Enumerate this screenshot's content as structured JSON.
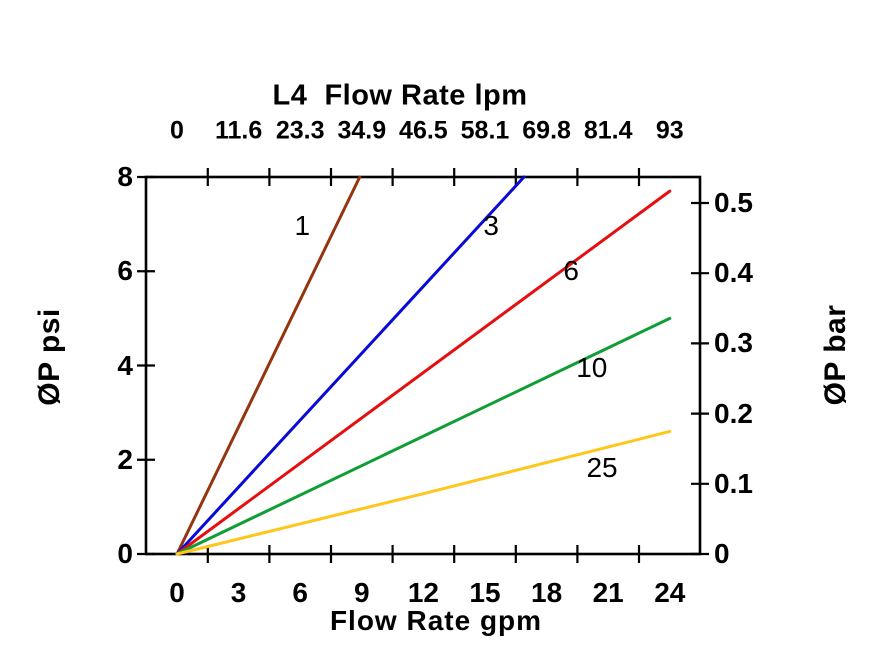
{
  "chart_data": {
    "type": "line",
    "title": "L4  Flow Rate lpm",
    "background": "#ffffff",
    "axis_color": "#000000",
    "grid": false,
    "top_axis": {
      "title": "L4  Flow Rate lpm",
      "unit": "lpm",
      "tick_labels": [
        "0",
        "11.6",
        "23.3",
        "34.9",
        "46.5",
        "58.1",
        "69.8",
        "81.4",
        "93"
      ],
      "label_positions_gpm": [
        0,
        3,
        6,
        9,
        12,
        15,
        18,
        21,
        24
      ],
      "tick_marks_gpm": [
        1.5,
        4.5,
        7.5,
        10.5,
        13.5,
        16.5,
        19.5,
        22.5
      ]
    },
    "bottom_axis": {
      "title": "Flow Rate gpm",
      "unit": "gpm",
      "tick_labels": [
        "0",
        "3",
        "6",
        "9",
        "12",
        "15",
        "18",
        "21",
        "24"
      ],
      "tick_values": [
        0,
        3,
        6,
        9,
        12,
        15,
        18,
        21,
        24
      ],
      "tick_marks_gpm": [
        1.5,
        4.5,
        7.5,
        10.5,
        13.5,
        16.5,
        19.5,
        22.5
      ],
      "range_gpm": [
        -1.5,
        25.5
      ]
    },
    "left_axis": {
      "title": "ØP psi",
      "unit": "psi",
      "tick_labels": [
        "0",
        "2",
        "4",
        "6",
        "8"
      ],
      "tick_values": [
        0,
        2,
        4,
        6,
        8
      ],
      "range_psi": [
        0,
        8
      ]
    },
    "right_axis": {
      "title": "ØP bar",
      "unit": "bar",
      "tick_labels": [
        "0",
        "0.1",
        "0.2",
        "0.3",
        "0.4",
        "0.5"
      ],
      "tick_values": [
        0,
        0.1,
        0.2,
        0.3,
        0.4,
        0.5
      ],
      "range_bar": [
        0,
        0.537
      ]
    },
    "series": [
      {
        "name": "1",
        "color": "#94350f",
        "points_gpm_psi": [
          [
            0,
            0
          ],
          [
            8.9,
            8.0
          ]
        ],
        "label_at_gpm_psi": [
          6.1,
          6.95
        ]
      },
      {
        "name": "3",
        "color": "#0a0ad8",
        "points_gpm_psi": [
          [
            0,
            0
          ],
          [
            16.9,
            8.0
          ]
        ],
        "label_at_gpm_psi": [
          15.3,
          6.95
        ]
      },
      {
        "name": "6",
        "color": "#e60f0f",
        "points_gpm_psi": [
          [
            0,
            0
          ],
          [
            24,
            7.7
          ]
        ],
        "label_at_gpm_psi": [
          19.2,
          6.0
        ]
      },
      {
        "name": "10",
        "color": "#0f9e35",
        "points_gpm_psi": [
          [
            0,
            0
          ],
          [
            24,
            5.0
          ]
        ],
        "label_at_gpm_psi": [
          20.2,
          3.95
        ]
      },
      {
        "name": "25",
        "color": "#ffc61c",
        "points_gpm_psi": [
          [
            0,
            0
          ],
          [
            12,
            1.28
          ],
          [
            24,
            2.6
          ]
        ],
        "label_at_gpm_psi": [
          20.7,
          1.83
        ]
      }
    ]
  }
}
